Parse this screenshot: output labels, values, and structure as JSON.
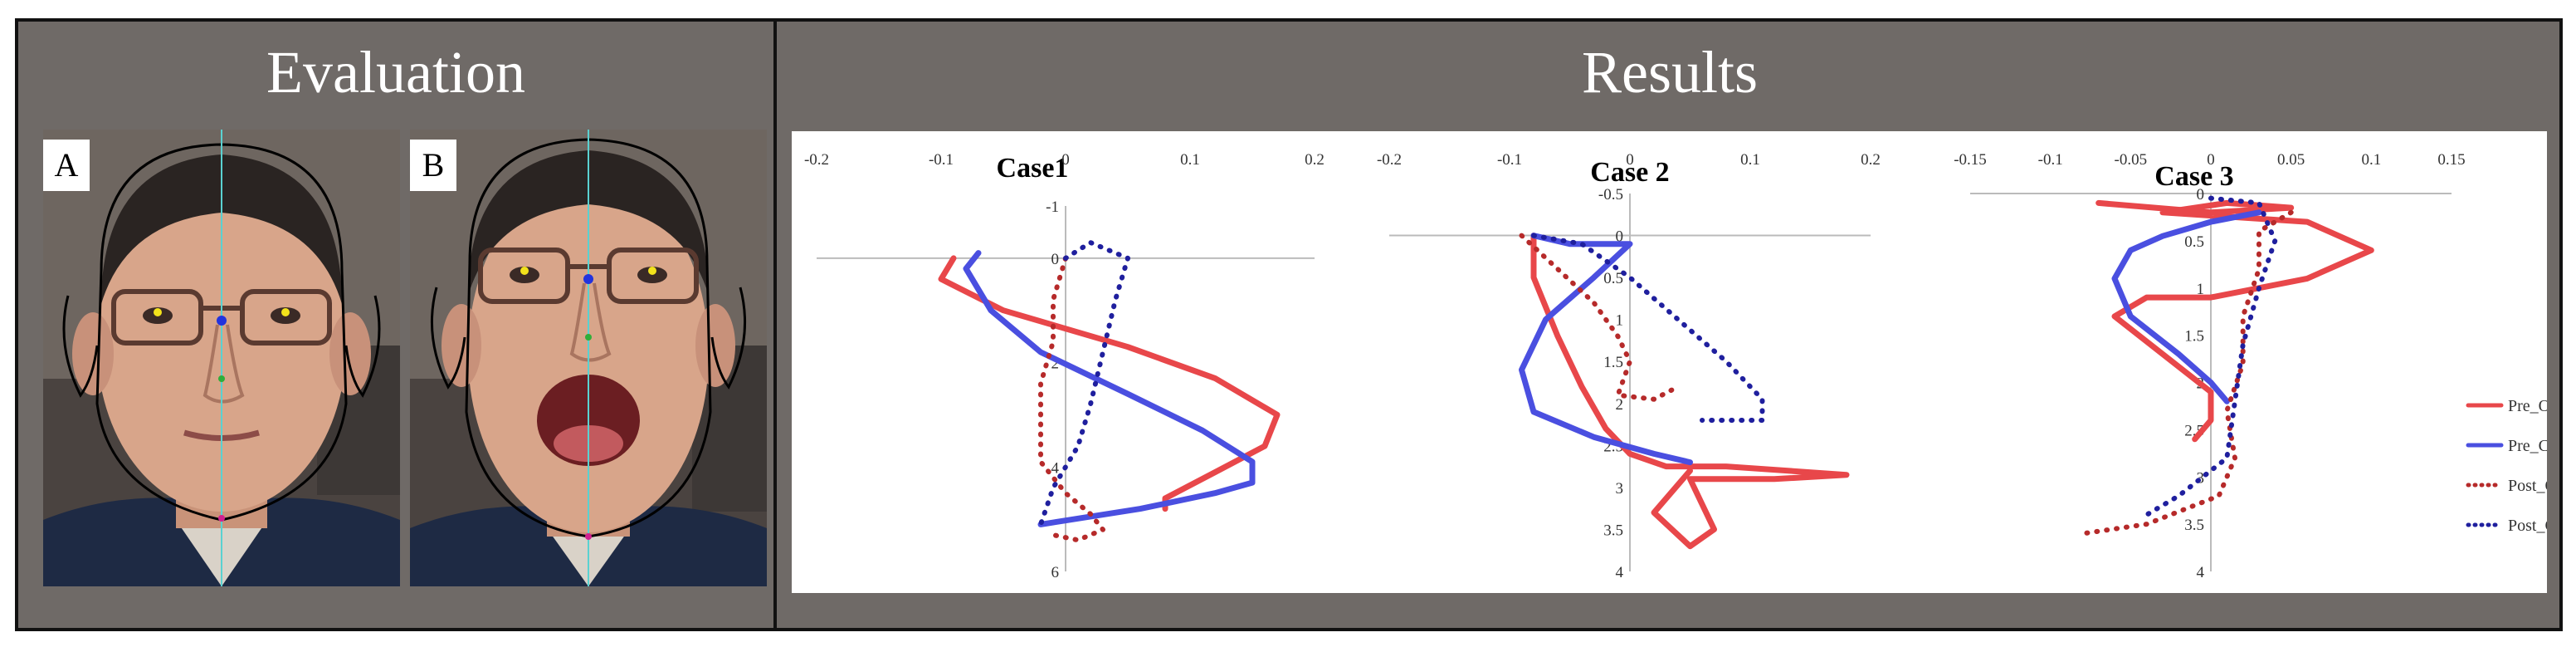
{
  "panels": {
    "evaluation_title": "Evaluation",
    "results_title": "Results",
    "photo_a_label": "A",
    "photo_b_label": "B"
  },
  "colors": {
    "pre_open": "#e8474a",
    "pre_close": "#4a4fe0",
    "post_open": "#b62a2a",
    "post_close": "#1f1f9e",
    "frame": "#6f6a67"
  },
  "chart_data": [
    {
      "type": "line",
      "title": "Case1",
      "xlim": [
        -0.2,
        0.2
      ],
      "ylim": [
        -1,
        6
      ],
      "y_inverted": true,
      "x_ticks": [
        "-0.2",
        "-0.1",
        "0",
        "0.1",
        "0.2"
      ],
      "x_tick_values": [
        -0.2,
        -0.1,
        0,
        0.1,
        0.2
      ],
      "y_ticks": [
        "-1",
        "0",
        "2",
        "4",
        "6"
      ],
      "y_tick_values": [
        -1,
        0,
        2,
        4,
        6
      ],
      "series": [
        {
          "name": "Pre_Open",
          "style": "solid",
          "x": [
            -0.09,
            -0.1,
            -0.05,
            0.05,
            0.12,
            0.17,
            0.16,
            0.12,
            0.08,
            0.08
          ],
          "y": [
            0,
            0.4,
            1.0,
            1.7,
            2.3,
            3.0,
            3.6,
            4.1,
            4.6,
            4.8
          ]
        },
        {
          "name": "Pre_Close",
          "style": "solid",
          "x": [
            -0.07,
            -0.08,
            -0.06,
            -0.02,
            0.05,
            0.11,
            0.15,
            0.15,
            0.12,
            0.06,
            -0.02
          ],
          "y": [
            -0.1,
            0.2,
            1.0,
            1.8,
            2.6,
            3.3,
            3.9,
            4.3,
            4.5,
            4.8,
            5.1
          ]
        },
        {
          "name": "Post_Open",
          "style": "dotted",
          "x": [
            0,
            -0.01,
            -0.01,
            -0.02,
            -0.02,
            -0.02,
            0,
            0.02,
            0.03,
            0.01,
            -0.01
          ],
          "y": [
            0,
            0.8,
            1.6,
            2.4,
            3.2,
            3.9,
            4.5,
            4.9,
            5.2,
            5.4,
            5.3
          ]
        },
        {
          "name": "Post_Close",
          "style": "dotted",
          "x": [
            0,
            0.02,
            0.05,
            0.04,
            0.03,
            0.02,
            0.01,
            -0.01,
            -0.02
          ],
          "y": [
            0,
            -0.3,
            0,
            0.8,
            1.8,
            2.8,
            3.6,
            4.4,
            5.1
          ]
        }
      ]
    },
    {
      "type": "line",
      "title": "Case 2",
      "xlim": [
        -0.2,
        0.2
      ],
      "ylim": [
        -0.5,
        4
      ],
      "y_inverted": true,
      "x_ticks": [
        "-0.2",
        "-0.1",
        "0",
        "0.1",
        "0.2"
      ],
      "x_tick_values": [
        -0.2,
        -0.1,
        0,
        0.1,
        0.2
      ],
      "y_ticks": [
        "-0.5",
        "0",
        "0.5",
        "1",
        "1.5",
        "2",
        "2.5",
        "3",
        "3.5",
        "4"
      ],
      "y_tick_values": [
        -0.5,
        0,
        0.5,
        1,
        1.5,
        2,
        2.5,
        3,
        3.5,
        4
      ],
      "series": [
        {
          "name": "Pre_Open",
          "style": "solid",
          "x": [
            -0.08,
            -0.08,
            -0.06,
            -0.04,
            -0.02,
            0,
            0.03,
            0.08,
            0.18,
            0.12,
            0.05,
            0.06,
            0.07,
            0.05,
            0.02,
            0.05
          ],
          "y": [
            0,
            0.5,
            1.2,
            1.8,
            2.3,
            2.6,
            2.75,
            2.75,
            2.85,
            2.9,
            2.9,
            3.2,
            3.5,
            3.7,
            3.3,
            2.8
          ]
        },
        {
          "name": "Pre_Close",
          "style": "solid",
          "x": [
            -0.08,
            -0.05,
            0,
            -0.03,
            -0.07,
            -0.09,
            -0.08,
            -0.03,
            0.02,
            0.05
          ],
          "y": [
            0,
            0.1,
            0.1,
            0.5,
            1.0,
            1.6,
            2.1,
            2.4,
            2.6,
            2.7
          ]
        },
        {
          "name": "Post_Open",
          "style": "dotted",
          "x": [
            -0.09,
            -0.06,
            -0.03,
            -0.01,
            0,
            -0.01,
            0.02,
            0.04
          ],
          "y": [
            0,
            0.4,
            0.8,
            1.2,
            1.5,
            1.9,
            1.95,
            1.8
          ]
        },
        {
          "name": "Post_Close",
          "style": "dotted",
          "x": [
            -0.08,
            -0.04,
            0,
            0.04,
            0.08,
            0.11,
            0.11,
            0.06
          ],
          "y": [
            0,
            0.1,
            0.5,
            1.0,
            1.5,
            1.95,
            2.2,
            2.2
          ]
        }
      ]
    },
    {
      "type": "line",
      "title": "Case 3",
      "xlim": [
        -0.15,
        0.15
      ],
      "ylim": [
        0,
        4
      ],
      "y_inverted": true,
      "x_ticks": [
        "-0.15",
        "-0.1",
        "-0.05",
        "0",
        "0.05",
        "0.1",
        "0.15"
      ],
      "x_tick_values": [
        -0.15,
        -0.1,
        -0.05,
        0,
        0.05,
        0.1,
        0.15
      ],
      "y_ticks": [
        "0",
        "0.5",
        "1",
        "1.5",
        "2",
        "2.5",
        "3",
        "3.5",
        "4"
      ],
      "y_tick_values": [
        0,
        0.5,
        1,
        1.5,
        2,
        2.5,
        3,
        3.5,
        4
      ],
      "series": [
        {
          "name": "Pre_Open",
          "style": "solid",
          "x": [
            -0.07,
            0.0,
            0.05,
            0.01,
            -0.03,
            0.06,
            0.1,
            0.06,
            0.0,
            -0.04,
            -0.06,
            -0.03,
            0.0,
            0.0,
            -0.01
          ],
          "y": [
            0.1,
            0.2,
            0.15,
            0.1,
            0.2,
            0.3,
            0.6,
            0.9,
            1.1,
            1.1,
            1.3,
            1.7,
            2.1,
            2.4,
            2.6
          ]
        },
        {
          "name": "Pre_Close",
          "style": "solid",
          "x": [
            0.03,
            0.0,
            -0.03,
            -0.05,
            -0.06,
            -0.05,
            -0.02,
            0.0,
            0.01
          ],
          "y": [
            0.2,
            0.3,
            0.45,
            0.6,
            0.9,
            1.3,
            1.7,
            2.0,
            2.2
          ]
        },
        {
          "name": "Post_Open",
          "style": "dotted",
          "x": [
            0.05,
            0.03,
            0.03,
            0.02,
            0.02,
            0.01,
            0.015,
            0.005,
            -0.04,
            -0.08
          ],
          "y": [
            0.2,
            0.4,
            0.8,
            1.3,
            1.8,
            2.3,
            2.8,
            3.2,
            3.5,
            3.6
          ]
        },
        {
          "name": "Post_Close",
          "style": "dotted",
          "x": [
            0.0,
            0.03,
            0.04,
            0.03,
            0.02,
            0.015,
            0.01,
            -0.02,
            -0.04
          ],
          "y": [
            0.05,
            0.1,
            0.5,
            1.0,
            1.6,
            2.2,
            2.8,
            3.2,
            3.4
          ]
        }
      ]
    }
  ],
  "legend": {
    "placement": "right",
    "entries": [
      {
        "name": "Pre_Open",
        "style": "solid",
        "color_key": "pre_open"
      },
      {
        "name": "Pre_Close",
        "style": "solid",
        "color_key": "pre_close"
      },
      {
        "name": "Post_Open",
        "style": "dotted",
        "color_key": "post_open"
      },
      {
        "name": "Post_Close",
        "style": "dotted",
        "color_key": "post_close"
      }
    ]
  }
}
